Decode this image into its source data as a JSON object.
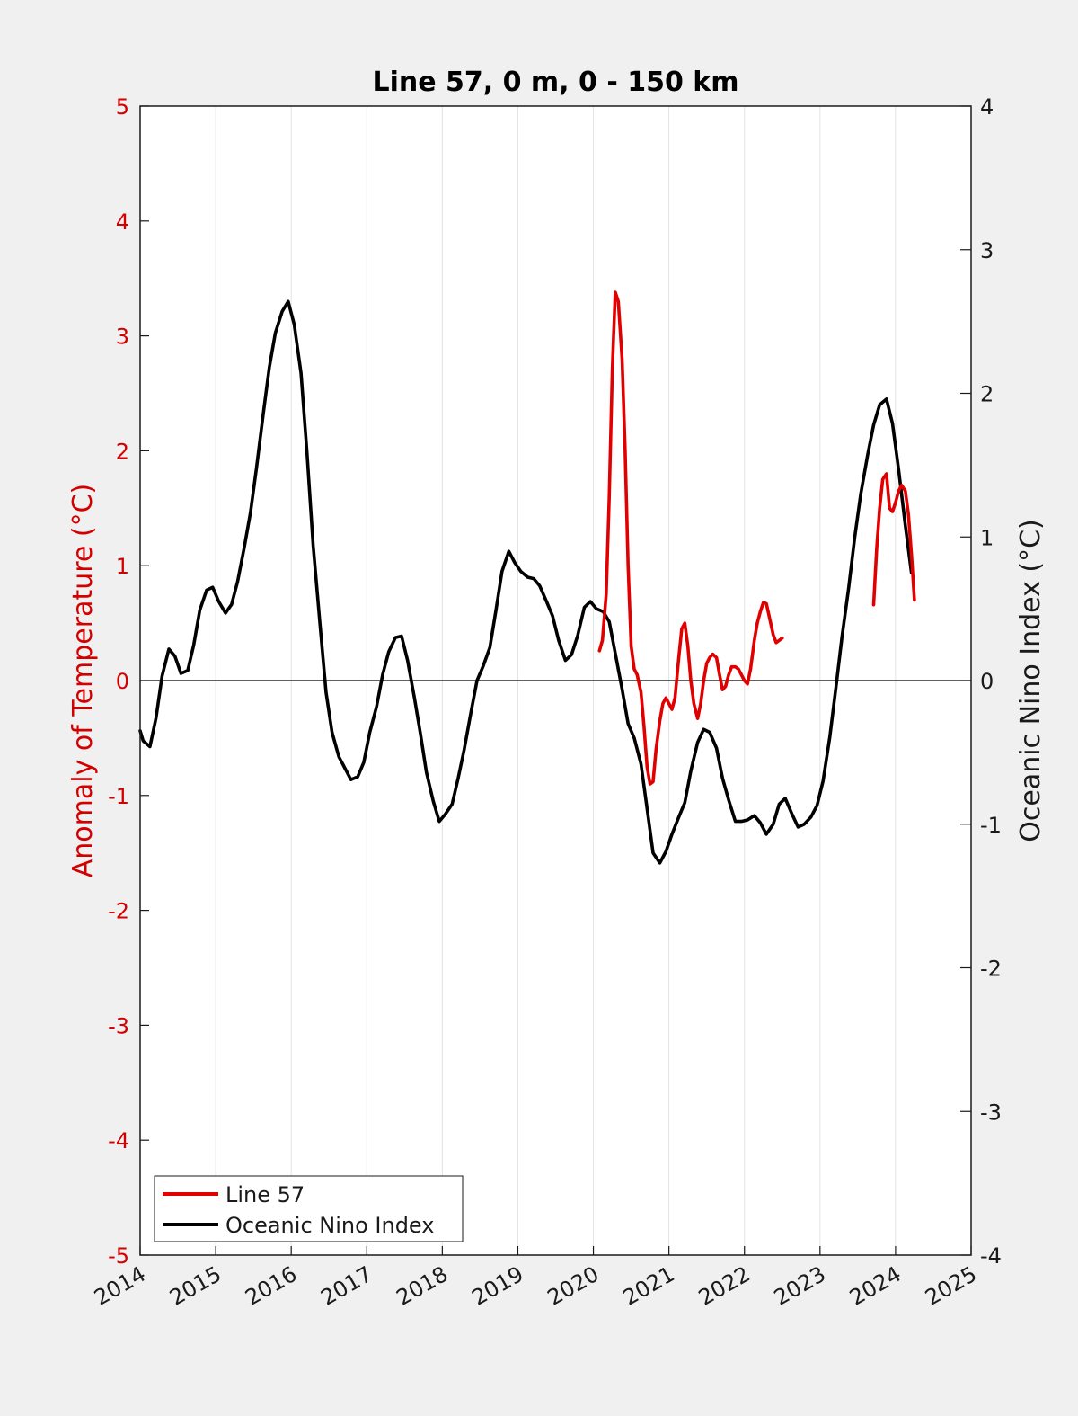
{
  "chart_data": {
    "type": "line",
    "title": "Line 57, 0 m, 0 - 150 km",
    "ylabel_left": "Anomaly of Temperature (°C)",
    "ylabel_right": "Oceanic Nino Index (°C)",
    "xlim": [
      2014,
      2025
    ],
    "ylim_left": [
      -5,
      5
    ],
    "ylim_right": [
      -4,
      4
    ],
    "x_ticks": [
      "2014",
      "2015",
      "2016",
      "2017",
      "2018",
      "2019",
      "2020",
      "2021",
      "2022",
      "2023",
      "2024",
      "2025"
    ],
    "y_left_ticks": [
      "5",
      "4",
      "3",
      "2",
      "1",
      "0",
      "-1",
      "-2",
      "-3",
      "-4",
      "-5"
    ],
    "y_right_ticks": [
      "4",
      "3",
      "2",
      "1",
      "0",
      "-1",
      "-2",
      "-3",
      "-4"
    ],
    "grid": "vertical",
    "legend_position": "bottom-left",
    "colors": {
      "line57": "#e00000",
      "oni": "#000000",
      "left_axis": "#d40000",
      "right_axis": "#1a1a1a"
    },
    "series": [
      {
        "name": "Line 57",
        "axis": "left",
        "segments": [
          [
            [
              2020.08,
              0.26
            ],
            [
              2020.12,
              0.35
            ],
            [
              2020.17,
              0.75
            ],
            [
              2020.21,
              1.6
            ],
            [
              2020.25,
              2.7
            ],
            [
              2020.29,
              3.38
            ],
            [
              2020.33,
              3.3
            ],
            [
              2020.38,
              2.8
            ],
            [
              2020.42,
              2.0
            ],
            [
              2020.46,
              1.0
            ],
            [
              2020.5,
              0.3
            ],
            [
              2020.54,
              0.1
            ],
            [
              2020.58,
              0.05
            ],
            [
              2020.63,
              -0.1
            ],
            [
              2020.67,
              -0.4
            ],
            [
              2020.71,
              -0.75
            ],
            [
              2020.75,
              -0.9
            ],
            [
              2020.79,
              -0.88
            ],
            [
              2020.83,
              -0.6
            ],
            [
              2020.88,
              -0.35
            ],
            [
              2020.92,
              -0.2
            ],
            [
              2020.96,
              -0.15
            ],
            [
              2021.0,
              -0.2
            ],
            [
              2021.04,
              -0.25
            ],
            [
              2021.08,
              -0.15
            ],
            [
              2021.13,
              0.2
            ],
            [
              2021.17,
              0.45
            ],
            [
              2021.21,
              0.5
            ],
            [
              2021.25,
              0.3
            ],
            [
              2021.29,
              0.0
            ],
            [
              2021.33,
              -0.2
            ],
            [
              2021.38,
              -0.33
            ],
            [
              2021.42,
              -0.2
            ],
            [
              2021.46,
              0.0
            ],
            [
              2021.5,
              0.15
            ],
            [
              2021.54,
              0.2
            ],
            [
              2021.58,
              0.23
            ],
            [
              2021.63,
              0.2
            ],
            [
              2021.67,
              0.05
            ],
            [
              2021.71,
              -0.08
            ],
            [
              2021.75,
              -0.05
            ],
            [
              2021.79,
              0.05
            ],
            [
              2021.83,
              0.12
            ],
            [
              2021.88,
              0.12
            ],
            [
              2021.92,
              0.1
            ],
            [
              2021.96,
              0.05
            ],
            [
              2022.0,
              0.0
            ],
            [
              2022.04,
              -0.03
            ],
            [
              2022.08,
              0.1
            ],
            [
              2022.13,
              0.35
            ],
            [
              2022.17,
              0.5
            ],
            [
              2022.21,
              0.6
            ],
            [
              2022.25,
              0.68
            ],
            [
              2022.29,
              0.67
            ],
            [
              2022.33,
              0.55
            ],
            [
              2022.38,
              0.4
            ],
            [
              2022.42,
              0.33
            ],
            [
              2022.46,
              0.35
            ],
            [
              2022.5,
              0.37
            ]
          ],
          [
            [
              2023.71,
              0.66
            ],
            [
              2023.75,
              1.15
            ],
            [
              2023.79,
              1.5
            ],
            [
              2023.83,
              1.75
            ],
            [
              2023.88,
              1.8
            ],
            [
              2023.92,
              1.5
            ],
            [
              2023.96,
              1.47
            ],
            [
              2024.0,
              1.55
            ],
            [
              2024.04,
              1.65
            ],
            [
              2024.08,
              1.7
            ],
            [
              2024.13,
              1.65
            ],
            [
              2024.17,
              1.45
            ],
            [
              2024.21,
              1.1
            ],
            [
              2024.25,
              0.7
            ]
          ]
        ]
      },
      {
        "name": "Oceanic Nino Index",
        "axis": "right",
        "segments": [
          [
            [
              2014.0,
              -0.35
            ],
            [
              2014.04,
              -0.42
            ],
            [
              2014.13,
              -0.46
            ],
            [
              2014.21,
              -0.26
            ],
            [
              2014.29,
              0.03
            ],
            [
              2014.38,
              0.22
            ],
            [
              2014.46,
              0.17
            ],
            [
              2014.54,
              0.05
            ],
            [
              2014.63,
              0.07
            ],
            [
              2014.71,
              0.25
            ],
            [
              2014.79,
              0.49
            ],
            [
              2014.88,
              0.63
            ],
            [
              2014.96,
              0.65
            ],
            [
              2015.04,
              0.55
            ],
            [
              2015.13,
              0.47
            ],
            [
              2015.21,
              0.53
            ],
            [
              2015.29,
              0.69
            ],
            [
              2015.38,
              0.93
            ],
            [
              2015.46,
              1.17
            ],
            [
              2015.54,
              1.48
            ],
            [
              2015.63,
              1.86
            ],
            [
              2015.71,
              2.18
            ],
            [
              2015.79,
              2.42
            ],
            [
              2015.88,
              2.57
            ],
            [
              2015.96,
              2.64
            ],
            [
              2016.04,
              2.48
            ],
            [
              2016.13,
              2.14
            ],
            [
              2016.21,
              1.58
            ],
            [
              2016.29,
              0.94
            ],
            [
              2016.38,
              0.4
            ],
            [
              2016.46,
              -0.08
            ],
            [
              2016.54,
              -0.36
            ],
            [
              2016.63,
              -0.53
            ],
            [
              2016.71,
              -0.61
            ],
            [
              2016.79,
              -0.69
            ],
            [
              2016.88,
              -0.67
            ],
            [
              2016.96,
              -0.57
            ],
            [
              2017.04,
              -0.36
            ],
            [
              2017.13,
              -0.18
            ],
            [
              2017.21,
              0.04
            ],
            [
              2017.29,
              0.2
            ],
            [
              2017.38,
              0.3
            ],
            [
              2017.46,
              0.31
            ],
            [
              2017.54,
              0.14
            ],
            [
              2017.63,
              -0.12
            ],
            [
              2017.71,
              -0.37
            ],
            [
              2017.79,
              -0.64
            ],
            [
              2017.88,
              -0.84
            ],
            [
              2017.96,
              -0.98
            ],
            [
              2018.04,
              -0.93
            ],
            [
              2018.13,
              -0.86
            ],
            [
              2018.21,
              -0.68
            ],
            [
              2018.29,
              -0.48
            ],
            [
              2018.38,
              -0.22
            ],
            [
              2018.46,
              0.0
            ],
            [
              2018.54,
              0.1
            ],
            [
              2018.63,
              0.23
            ],
            [
              2018.71,
              0.49
            ],
            [
              2018.79,
              0.76
            ],
            [
              2018.88,
              0.9
            ],
            [
              2018.96,
              0.82
            ],
            [
              2019.04,
              0.76
            ],
            [
              2019.13,
              0.72
            ],
            [
              2019.21,
              0.71
            ],
            [
              2019.29,
              0.66
            ],
            [
              2019.38,
              0.55
            ],
            [
              2019.46,
              0.45
            ],
            [
              2019.54,
              0.28
            ],
            [
              2019.63,
              0.14
            ],
            [
              2019.71,
              0.18
            ],
            [
              2019.79,
              0.31
            ],
            [
              2019.88,
              0.51
            ],
            [
              2019.96,
              0.55
            ],
            [
              2020.04,
              0.5
            ],
            [
              2020.13,
              0.48
            ],
            [
              2020.21,
              0.41
            ],
            [
              2020.29,
              0.19
            ],
            [
              2020.38,
              -0.06
            ],
            [
              2020.46,
              -0.3
            ],
            [
              2020.54,
              -0.4
            ],
            [
              2020.63,
              -0.58
            ],
            [
              2020.71,
              -0.89
            ],
            [
              2020.79,
              -1.2
            ],
            [
              2020.88,
              -1.27
            ],
            [
              2020.96,
              -1.19
            ],
            [
              2021.04,
              -1.07
            ],
            [
              2021.13,
              -0.95
            ],
            [
              2021.21,
              -0.85
            ],
            [
              2021.29,
              -0.63
            ],
            [
              2021.38,
              -0.43
            ],
            [
              2021.46,
              -0.34
            ],
            [
              2021.54,
              -0.36
            ],
            [
              2021.63,
              -0.47
            ],
            [
              2021.71,
              -0.68
            ],
            [
              2021.79,
              -0.83
            ],
            [
              2021.88,
              -0.98
            ],
            [
              2021.96,
              -0.98
            ],
            [
              2022.04,
              -0.97
            ],
            [
              2022.13,
              -0.94
            ],
            [
              2022.21,
              -0.99
            ],
            [
              2022.29,
              -1.07
            ],
            [
              2022.38,
              -1.0
            ],
            [
              2022.46,
              -0.86
            ],
            [
              2022.54,
              -0.82
            ],
            [
              2022.63,
              -0.93
            ],
            [
              2022.71,
              -1.02
            ],
            [
              2022.79,
              -1.0
            ],
            [
              2022.88,
              -0.95
            ],
            [
              2022.96,
              -0.87
            ],
            [
              2023.04,
              -0.7
            ],
            [
              2023.13,
              -0.39
            ],
            [
              2023.21,
              -0.05
            ],
            [
              2023.29,
              0.3
            ],
            [
              2023.38,
              0.65
            ],
            [
              2023.46,
              1.0
            ],
            [
              2023.54,
              1.3
            ],
            [
              2023.63,
              1.57
            ],
            [
              2023.71,
              1.78
            ],
            [
              2023.79,
              1.92
            ],
            [
              2023.88,
              1.96
            ],
            [
              2023.96,
              1.79
            ],
            [
              2024.04,
              1.47
            ],
            [
              2024.13,
              1.08
            ],
            [
              2024.21,
              0.75
            ]
          ]
        ]
      }
    ]
  }
}
